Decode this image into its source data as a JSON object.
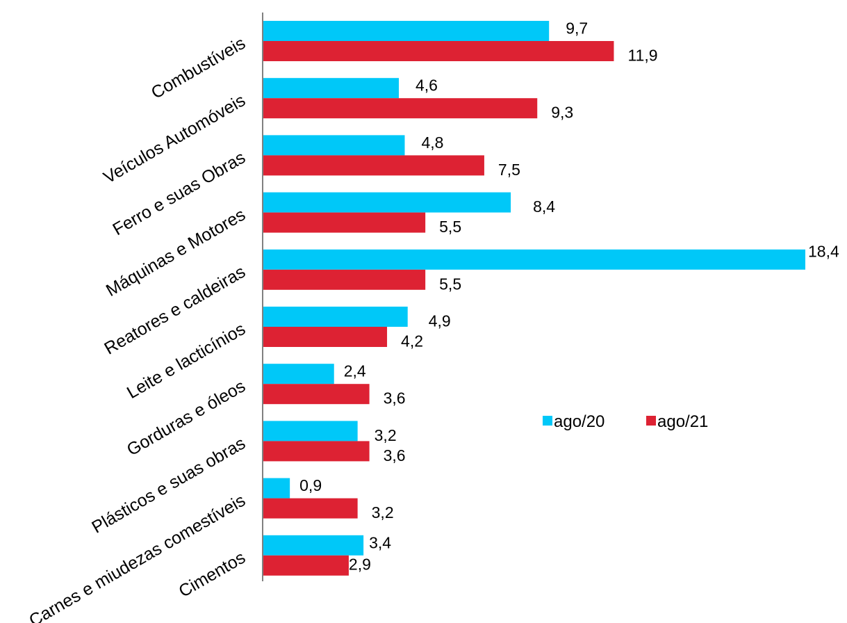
{
  "chart_data": {
    "type": "bar",
    "orientation": "horizontal",
    "categories": [
      "Combustíveis",
      "Veículos Automóveis",
      "Ferro e suas Obras",
      "Máquinas e Motores",
      "Reatores e caldeiras",
      "Leite e lacticínios",
      "Gorduras e óleos",
      "Plásticos e suas obras",
      "Carnes e miudezas comestíveis",
      "Cimentos"
    ],
    "series": [
      {
        "name": "ago/20",
        "color": "#00C8F8",
        "values": [
          9.7,
          4.6,
          4.8,
          8.4,
          18.4,
          4.9,
          2.4,
          3.2,
          0.9,
          3.4
        ],
        "labels": [
          "9,7",
          "4,6",
          "4,8",
          "8,4",
          "18,4",
          "4,9",
          "2,4",
          "3,2",
          "0,9",
          "3,4"
        ]
      },
      {
        "name": "ago/21",
        "color": "#DD2233",
        "values": [
          11.9,
          9.3,
          7.5,
          5.5,
          5.5,
          4.2,
          3.6,
          3.6,
          3.2,
          2.9
        ],
        "labels": [
          "11,9",
          "9,3",
          "7,5",
          "5,5",
          "5,5",
          "4,2",
          "3,6",
          "3,6",
          "3,2",
          "2,9"
        ]
      }
    ],
    "xlim": [
      0,
      18.4
    ],
    "grid": false,
    "legend": "center-right"
  }
}
